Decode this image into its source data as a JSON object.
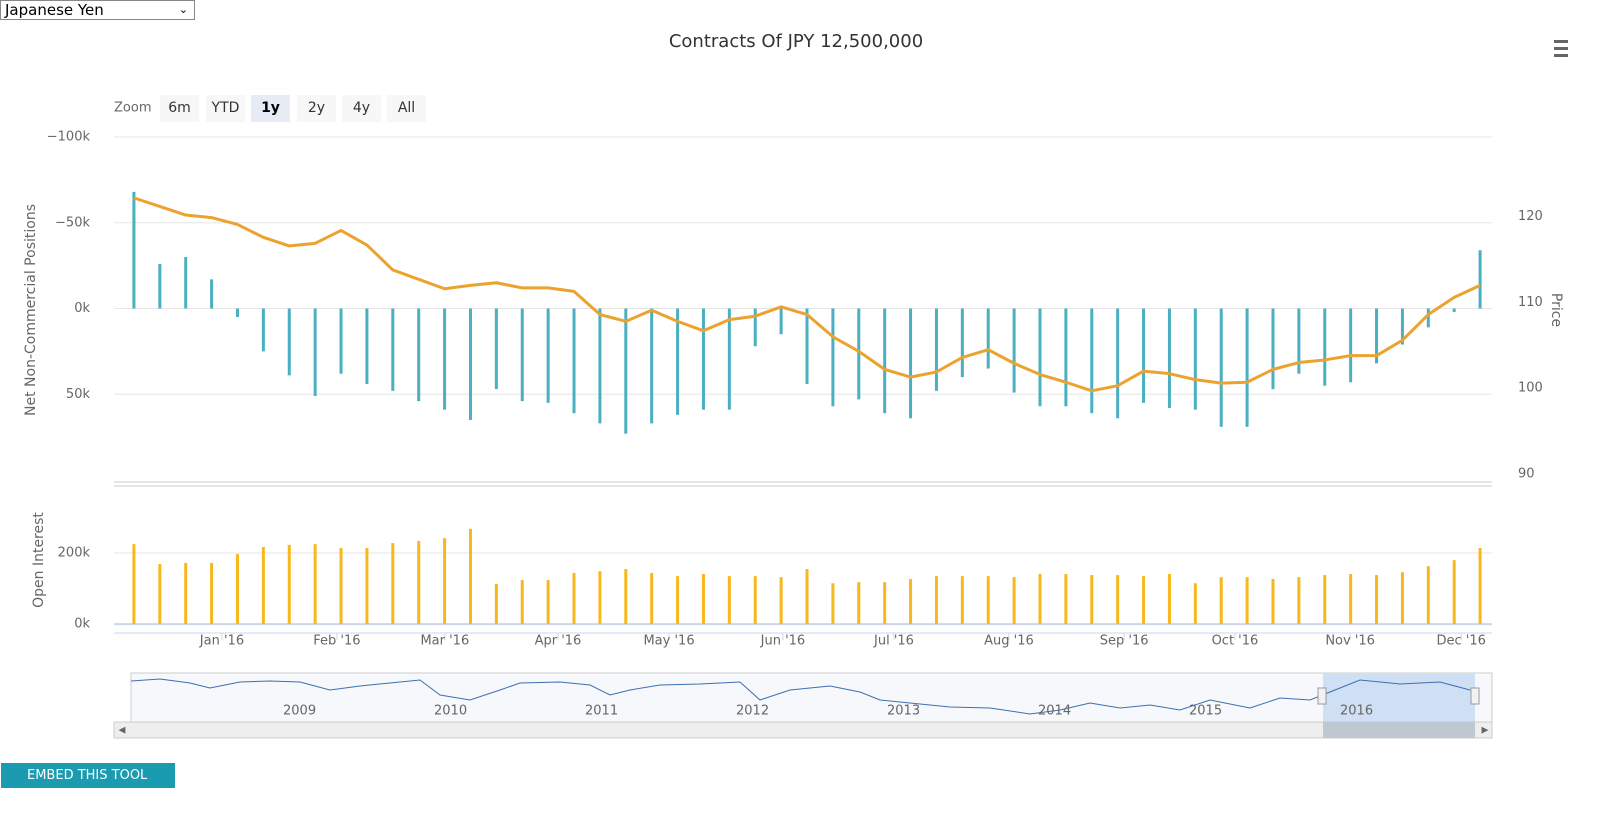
{
  "dropdown": "Japanese Yen",
  "zoom": {
    "label": "Zoom",
    "buttons": [
      "6m",
      "YTD",
      "1y",
      "2y",
      "4y",
      "All"
    ],
    "active": "1y"
  },
  "embed": "EMBED THIS TOOL",
  "navigator": {
    "labels": [
      2009,
      2010,
      2011,
      2012,
      2013,
      2014,
      2015,
      2016
    ]
  },
  "chart_data": [
    {
      "type": "bar-line",
      "title": "Contracts Of JPY 12,500,000",
      "ylabel": "Net Non-Commercial Positions",
      "y2label": "Price",
      "x": [
        0,
        1,
        2,
        3,
        4,
        5,
        6,
        7,
        8,
        9,
        10,
        11,
        12,
        13,
        14,
        15,
        16,
        17,
        18,
        19,
        20,
        21,
        22,
        23,
        24,
        25,
        26,
        27,
        28,
        29,
        30,
        31,
        32,
        33,
        34,
        35,
        36,
        37,
        38,
        39,
        40,
        41,
        42,
        43,
        44,
        45,
        46,
        47,
        48,
        49,
        50,
        51,
        52
      ],
      "xlim": [
        -0.77,
        52.46
      ],
      "ylim": [
        -100000,
        100000
      ],
      "y_reversed": true,
      "yticks": [
        {
          "value": -100000,
          "label": "−100k"
        },
        {
          "value": -50000,
          "label": "−50k"
        },
        {
          "value": 0,
          "label": "0k"
        },
        {
          "value": 50000,
          "label": "50k"
        }
      ],
      "y2lim": [
        89.3,
        129.3
      ],
      "y2ticks": [
        90,
        100,
        110,
        120
      ],
      "grid": true,
      "series": [
        {
          "name": "Net Non-Commercial Positions",
          "kind": "bar",
          "color": "#4ab0c1",
          "values": [
            -68000,
            -26000,
            -30000,
            -17000,
            5000,
            25000,
            39000,
            51000,
            38000,
            44000,
            48000,
            54000,
            59000,
            65000,
            47000,
            54000,
            55000,
            61000,
            67000,
            73000,
            67000,
            62000,
            59000,
            59000,
            22000,
            15000,
            44000,
            57000,
            53000,
            61000,
            64000,
            48000,
            40000,
            35000,
            49000,
            57000,
            57000,
            61000,
            64000,
            55000,
            58000,
            59000,
            69000,
            69000,
            47000,
            38000,
            45000,
            43000,
            32000,
            21000,
            11000,
            2000,
            -34000
          ]
        },
        {
          "name": "Price",
          "kind": "line",
          "axis": "y2",
          "color": "#eca22f",
          "values": [
            122.2,
            121.2,
            120.2,
            119.9,
            119.1,
            117.6,
            116.6,
            116.9,
            118.4,
            116.7,
            113.8,
            112.7,
            111.6,
            112.0,
            112.3,
            111.7,
            111.7,
            111.3,
            108.6,
            107.8,
            109.1,
            107.8,
            106.7,
            108.0,
            108.4,
            109.5,
            108.6,
            106.0,
            104.3,
            102.2,
            101.3,
            101.9,
            103.6,
            104.5,
            102.9,
            101.6,
            100.7,
            99.7,
            100.3,
            102.0,
            101.7,
            101.0,
            100.6,
            100.7,
            102.2,
            103.0,
            103.3,
            103.8,
            103.8,
            105.6,
            108.6,
            110.6,
            112.0
          ]
        }
      ]
    },
    {
      "type": "bar",
      "ylabel": "Open Interest",
      "x": [
        0,
        1,
        2,
        3,
        4,
        5,
        6,
        7,
        8,
        9,
        10,
        11,
        12,
        13,
        14,
        15,
        16,
        17,
        18,
        19,
        20,
        21,
        22,
        23,
        24,
        25,
        26,
        27,
        28,
        29,
        30,
        31,
        32,
        33,
        34,
        35,
        36,
        37,
        38,
        39,
        40,
        41,
        42,
        43,
        44,
        45,
        46,
        47,
        48,
        49,
        50,
        51,
        52
      ],
      "xlim": [
        -0.77,
        52.46
      ],
      "xticks": [
        {
          "value": 3.4,
          "label": "Jan '16"
        },
        {
          "value": 7.84,
          "label": "Feb '16"
        },
        {
          "value": 12.01,
          "label": "Mar '16"
        },
        {
          "value": 16.38,
          "label": "Apr '16"
        },
        {
          "value": 20.67,
          "label": "May '16"
        },
        {
          "value": 25.07,
          "label": "Jun '16"
        },
        {
          "value": 29.36,
          "label": "Jul '16"
        },
        {
          "value": 33.8,
          "label": "Aug '16"
        },
        {
          "value": 38.25,
          "label": "Sep '16"
        },
        {
          "value": 42.53,
          "label": "Oct '16"
        },
        {
          "value": 46.98,
          "label": "Nov '16"
        },
        {
          "value": 51.27,
          "label": "Dec '16"
        }
      ],
      "ylim": [
        -25000,
        383000
      ],
      "yticks": [
        {
          "value": 0,
          "label": "0k"
        },
        {
          "value": 200000,
          "label": "200k"
        }
      ],
      "grid": true,
      "series": [
        {
          "name": "Open Interest",
          "kind": "bar",
          "color": "#f7b81c",
          "values": [
            225000,
            169000,
            172000,
            172000,
            197000,
            217000,
            223000,
            225000,
            214000,
            214000,
            228000,
            234000,
            242000,
            268000,
            113000,
            124000,
            124000,
            144000,
            149000,
            155000,
            144000,
            135000,
            141000,
            135000,
            135000,
            132000,
            155000,
            115000,
            118000,
            118000,
            127000,
            135000,
            135000,
            135000,
            132000,
            141000,
            141000,
            138000,
            138000,
            135000,
            141000,
            115000,
            132000,
            132000,
            127000,
            132000,
            138000,
            141000,
            138000,
            146000,
            163000,
            180000,
            214000
          ]
        }
      ]
    }
  ]
}
